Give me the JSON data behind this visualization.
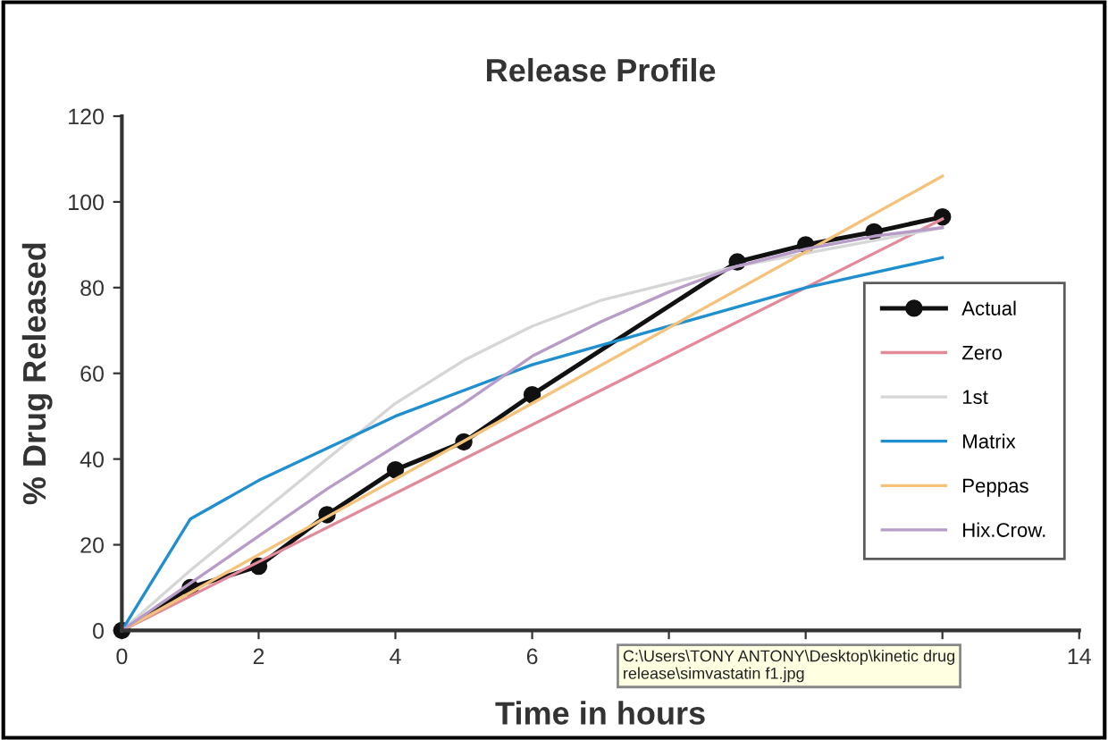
{
  "chart_data": {
    "type": "line",
    "title": "Release Profile",
    "xlabel": "Time in hours",
    "ylabel": "% Drug Released",
    "xlim": [
      0,
      14
    ],
    "xticks": [
      0,
      2,
      4,
      6,
      {
        "value": 8,
        "label": null
      },
      {
        "value": 10,
        "label": null
      },
      {
        "value": 12,
        "label": null
      },
      14
    ],
    "ylim": [
      0,
      120
    ],
    "yticks": [
      0,
      20,
      40,
      60,
      80,
      100,
      120
    ],
    "grid": false,
    "legend": "right",
    "series": [
      {
        "name": "Actual",
        "color": "#111111",
        "marker": "circle",
        "x": [
          0,
          1,
          2,
          3,
          4,
          5,
          6,
          9,
          10,
          11,
          12
        ],
        "values": [
          0,
          10,
          15,
          27,
          37.5,
          44,
          55,
          86,
          90,
          93,
          96.5
        ]
      },
      {
        "name": "Zero",
        "color": "#e08a9a",
        "x": [
          0,
          12
        ],
        "values": [
          0,
          96
        ]
      },
      {
        "name": "1st",
        "color": "#d6d6d6",
        "x": [
          0,
          1,
          2,
          3,
          4,
          5,
          6,
          7,
          8,
          9,
          10,
          11,
          12
        ],
        "values": [
          0,
          14,
          27,
          40,
          53,
          63,
          71,
          77,
          81,
          85,
          88,
          91,
          94
        ]
      },
      {
        "name": "Matrix",
        "color": "#1f8fd0",
        "x": [
          0,
          1,
          2,
          4,
          6,
          8,
          10,
          12
        ],
        "values": [
          0,
          26,
          35,
          50,
          62,
          71,
          80,
          87
        ]
      },
      {
        "name": "Peppas",
        "color": "#f5c27a",
        "x": [
          0,
          12
        ],
        "values": [
          0,
          106
        ]
      },
      {
        "name": "Hix.Crow.",
        "color": "#b89cc8",
        "x": [
          0,
          1,
          2,
          3,
          4,
          5,
          6,
          7,
          8,
          9,
          10,
          11,
          12
        ],
        "values": [
          0,
          11,
          22,
          33,
          43,
          53,
          64,
          72,
          79,
          85,
          89,
          92,
          94
        ]
      }
    ],
    "annotations": [
      "C:\\Users\\TONY ANTONY\\Desktop\\kinetic drug\nrelease\\simvastatin f1.jpg"
    ]
  }
}
